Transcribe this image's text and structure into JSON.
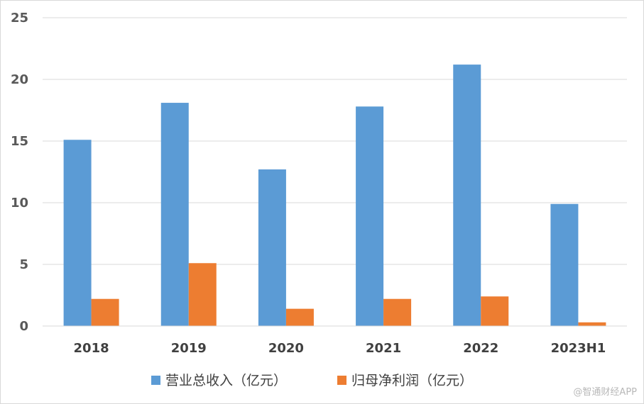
{
  "chart_data": {
    "type": "bar",
    "categories": [
      "2018",
      "2019",
      "2020",
      "2021",
      "2022",
      "2023H1"
    ],
    "series": [
      {
        "name": "营业总收入（亿元）",
        "color": "#5b9bd5",
        "values": [
          15.1,
          18.1,
          12.7,
          17.8,
          21.2,
          9.9
        ]
      },
      {
        "name": "归母净利润（亿元）",
        "color": "#ed7d31",
        "values": [
          2.2,
          5.1,
          1.4,
          2.2,
          2.4,
          0.3
        ]
      }
    ],
    "ylim": [
      0,
      25
    ],
    "yticks": [
      0,
      5,
      10,
      15,
      20,
      25
    ],
    "grid": true,
    "legend": "bottom"
  },
  "watermark": "@智通财经APP"
}
